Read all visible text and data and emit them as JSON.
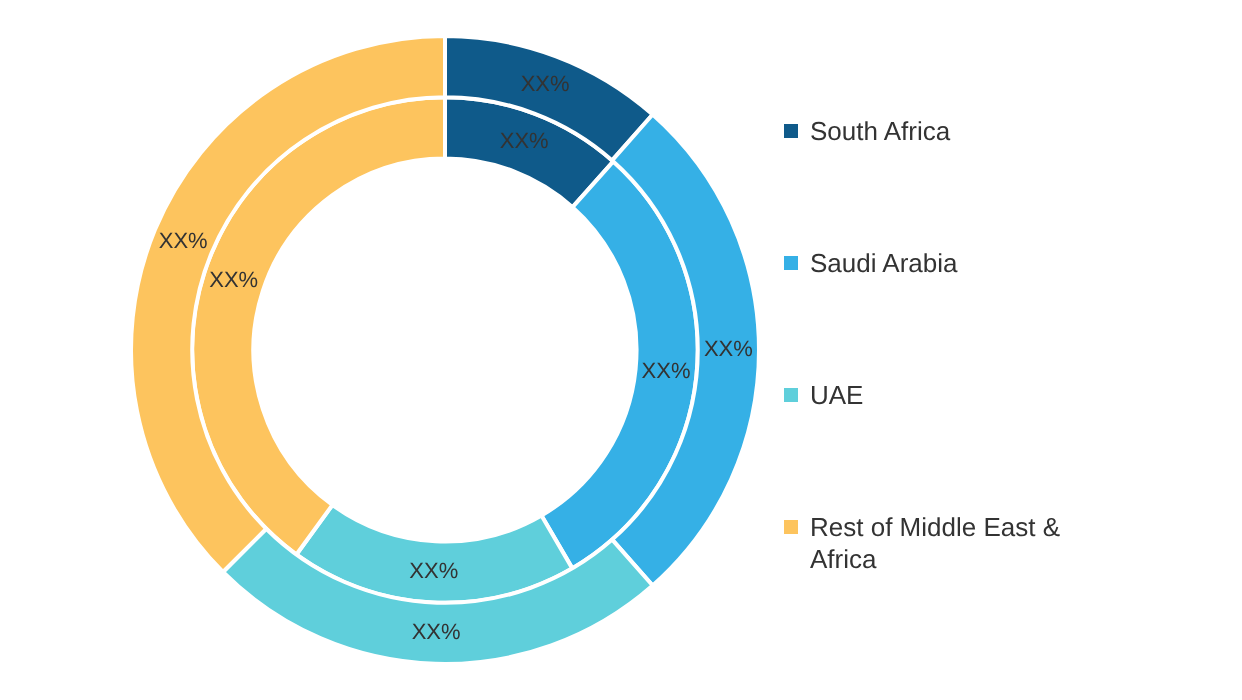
{
  "chart_data": {
    "type": "donut",
    "categories": [
      "South Africa",
      "Saudi Arabia",
      "UAE",
      "Rest of Middle East & Africa"
    ],
    "colors": [
      "#0f5a8a",
      "#35b0e6",
      "#5fcfdb",
      "#fdc45e"
    ],
    "legend": "right",
    "series": [
      {
        "values": [
          11.5,
          27,
          24,
          37.5
        ],
        "value_labels": [
          "XX%",
          "XX%",
          "XX%",
          "XX%"
        ]
      },
      {
        "values": [
          11.6,
          30,
          18.4,
          40
        ],
        "value_labels": [
          "XX%",
          "XX%",
          "XX%",
          "XX%"
        ]
      }
    ]
  }
}
